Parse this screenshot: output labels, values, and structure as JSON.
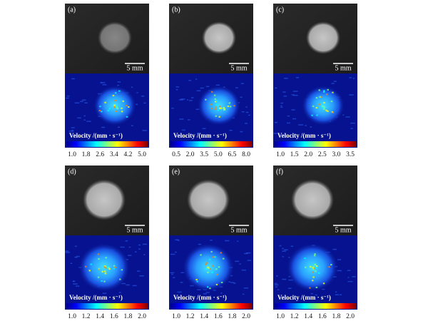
{
  "panels": [
    {
      "label": "(a)",
      "scale_bar": "5 mm",
      "colorbar_title": "Velocity /(mm · s⁻¹)",
      "colorbar_ticks": [
        "1.0",
        "1.8",
        "2.6",
        "3.4",
        "4.2",
        "5.0"
      ]
    },
    {
      "label": "(b)",
      "scale_bar": "5 mm",
      "colorbar_title": "Velocity /(mm · s⁻¹)",
      "colorbar_ticks": [
        "0.5",
        "2.0",
        "3.5",
        "5.0",
        "6.5",
        "8.0"
      ]
    },
    {
      "label": "(c)",
      "scale_bar": "5 mm",
      "colorbar_title": "Velocity /(mm · s⁻¹)",
      "colorbar_ticks": [
        "1.0",
        "1.5",
        "2.0",
        "2.5",
        "3.0",
        "3.5"
      ]
    },
    {
      "label": "(d)",
      "scale_bar": "5 mm",
      "colorbar_title": "Velocity /(mm · s⁻¹)",
      "colorbar_ticks": [
        "1.0",
        "1.2",
        "1.4",
        "1.6",
        "1.8",
        "2.0"
      ]
    },
    {
      "label": "(e)",
      "scale_bar": "5 mm",
      "colorbar_title": "Velocity /(mm · s⁻¹)",
      "colorbar_ticks": [
        "1.0",
        "1.2",
        "1.4",
        "1.6",
        "1.8",
        "2.0"
      ]
    },
    {
      "label": "(f)",
      "scale_bar": "5 mm",
      "colorbar_title": "Velocity /(mm · s⁻¹)",
      "colorbar_ticks": [
        "1.0",
        "1.2",
        "1.4",
        "1.6",
        "1.8",
        "2.0"
      ]
    }
  ]
}
